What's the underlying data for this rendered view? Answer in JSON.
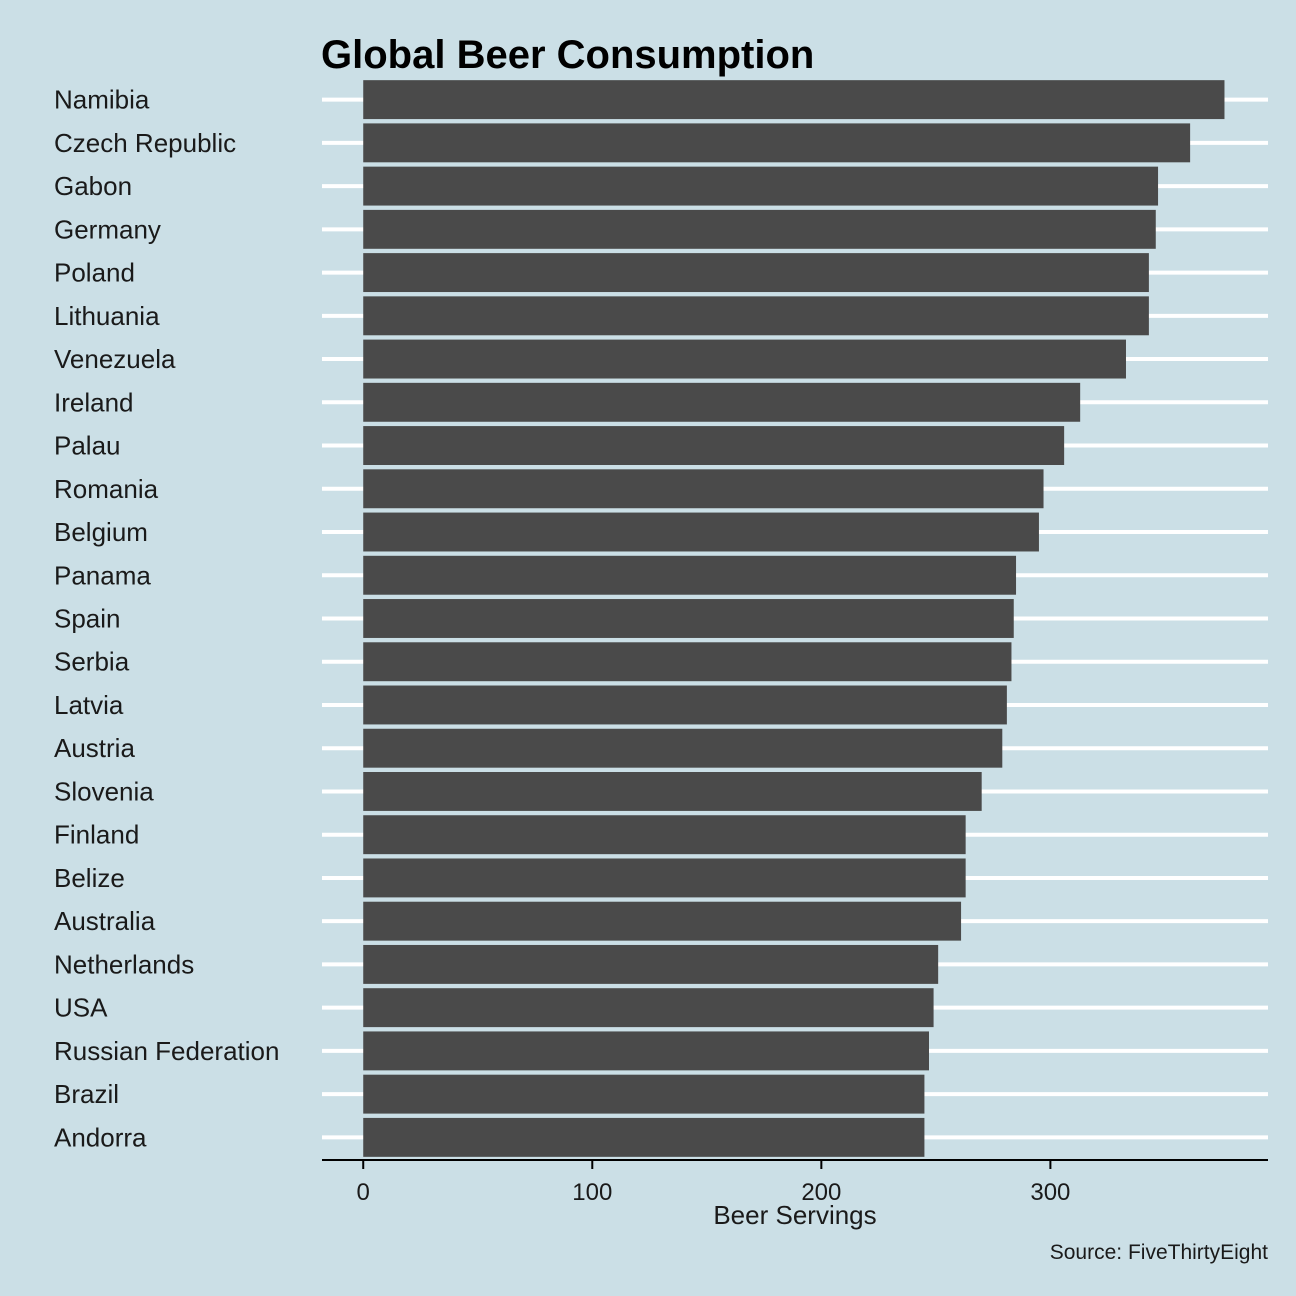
{
  "chart_data": {
    "type": "bar",
    "orientation": "horizontal",
    "title": "Global Beer Consumption",
    "xlabel": "Beer Servings",
    "ylabel": "",
    "caption": "Source: FiveThirtyEight",
    "categories": [
      "Namibia",
      "Czech Republic",
      "Gabon",
      "Germany",
      "Poland",
      "Lithuania",
      "Venezuela",
      "Ireland",
      "Palau",
      "Romania",
      "Belgium",
      "Panama",
      "Spain",
      "Serbia",
      "Latvia",
      "Austria",
      "Slovenia",
      "Finland",
      "Belize",
      "Australia",
      "Netherlands",
      "USA",
      "Russian Federation",
      "Brazil",
      "Andorra"
    ],
    "values": [
      376,
      361,
      347,
      346,
      343,
      343,
      333,
      313,
      306,
      297,
      295,
      285,
      284,
      283,
      281,
      279,
      270,
      263,
      263,
      261,
      251,
      249,
      247,
      245,
      245
    ],
    "xlim": [
      -18,
      395
    ],
    "xticks": [
      0,
      100,
      200,
      300
    ],
    "xtick_labels": [
      "0",
      "100",
      "200",
      "300"
    ],
    "grid": "horizontal major lines (white)",
    "colors": {
      "background": "#cbdfe6",
      "bar": "#4a4a4a",
      "grid": "#ffffff",
      "axis": "#000000"
    }
  }
}
